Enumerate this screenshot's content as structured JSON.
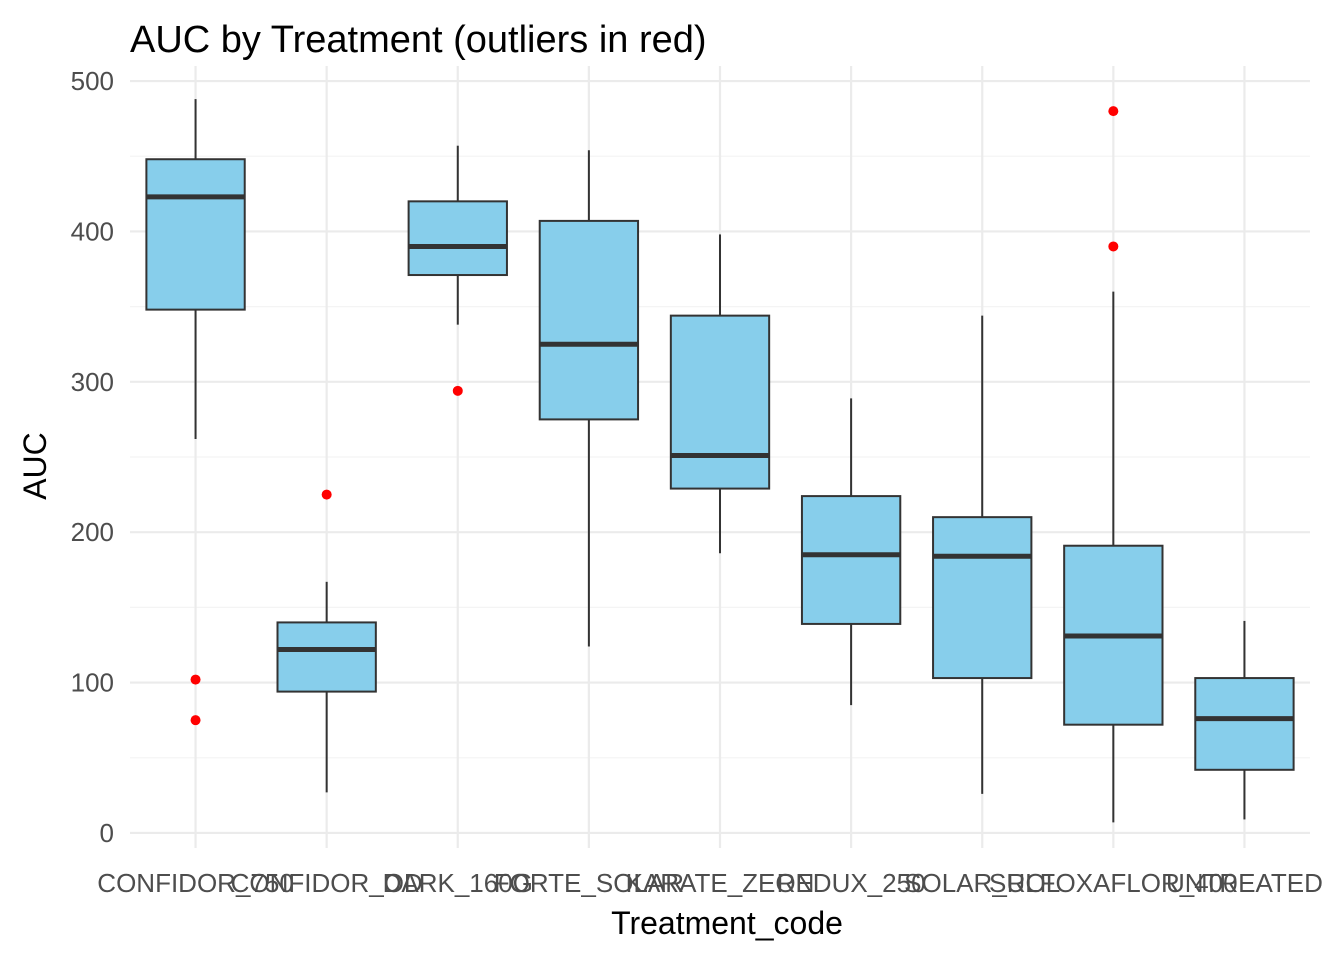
{
  "chart_data": {
    "type": "box",
    "title": "AUC by Treatment (outliers in red)",
    "xlabel": "Treatment_code",
    "ylabel": "AUC",
    "ylim": [
      -10,
      510
    ],
    "yticks": [
      0,
      100,
      200,
      300,
      400,
      500
    ],
    "grid": true,
    "legend": "none",
    "box_fill": "#87CEEB",
    "box_stroke": "#333333",
    "outlier_color": "#FF0000",
    "grid_color": "#EBEBEB",
    "categories": [
      "CONFIDOR_750",
      "CONFIDOR_OD",
      "DARK_160G",
      "FORTE_SOLAR",
      "KARATE_ZEON",
      "REDUX_250",
      "SOLAR_ROL",
      "SULFOXAFLOR_400",
      "UNTREATED"
    ],
    "boxes": [
      {
        "min": 262,
        "q1": 348,
        "median": 423,
        "q3": 448,
        "max": 488,
        "outliers": [
          102,
          75
        ]
      },
      {
        "min": 27,
        "q1": 94,
        "median": 122,
        "q3": 140,
        "max": 167,
        "outliers": [
          225
        ]
      },
      {
        "min": 338,
        "q1": 371,
        "median": 390,
        "q3": 420,
        "max": 457,
        "outliers": [
          294
        ]
      },
      {
        "min": 124,
        "q1": 275,
        "median": 325,
        "q3": 407,
        "max": 454,
        "outliers": []
      },
      {
        "min": 186,
        "q1": 229,
        "median": 251,
        "q3": 344,
        "max": 398,
        "outliers": []
      },
      {
        "min": 85,
        "q1": 139,
        "median": 185,
        "q3": 224,
        "max": 289,
        "outliers": []
      },
      {
        "min": 26,
        "q1": 103,
        "median": 184,
        "q3": 210,
        "max": 344,
        "outliers": []
      },
      {
        "min": 7,
        "q1": 72,
        "median": 131,
        "q3": 191,
        "max": 360,
        "outliers": [
          480,
          390
        ]
      },
      {
        "min": 9,
        "q1": 42,
        "median": 76,
        "q3": 103,
        "max": 141,
        "outliers": []
      }
    ]
  }
}
